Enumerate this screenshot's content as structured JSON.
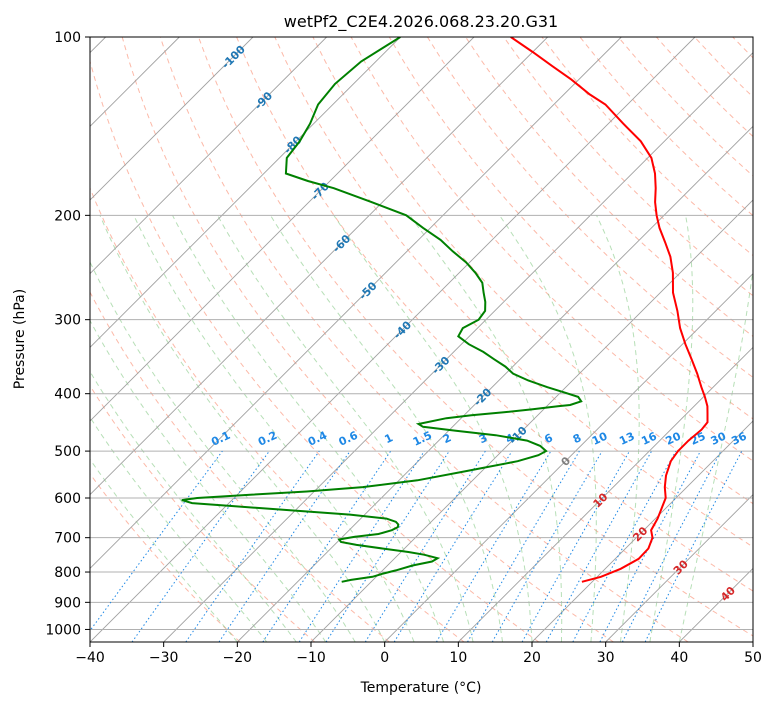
{
  "chart_data": {
    "type": "skew-t",
    "title": "wetPf2_C2E4.2026.068.23.20.G31",
    "xlabel": "Temperature (°C)",
    "ylabel": "Pressure (hPa)",
    "xlim": [
      -40,
      50
    ],
    "ylim": [
      1050,
      100
    ],
    "y_scale": "log",
    "grid": true,
    "x_ticks": [
      -40,
      -30,
      -20,
      -10,
      0,
      10,
      20,
      30,
      40,
      50
    ],
    "y_ticks": [
      100,
      200,
      300,
      400,
      500,
      600,
      700,
      800,
      900,
      1000
    ],
    "x_tick_labels": [
      "−40",
      "−30",
      "−20",
      "−10",
      "0",
      "10",
      "20",
      "30",
      "40",
      "50"
    ],
    "y_tick_labels": [
      "100",
      "200",
      "300",
      "400",
      "500",
      "600",
      "700",
      "800",
      "900",
      "1000"
    ],
    "isotherm_labels": {
      "values": [
        -100,
        -90,
        -80,
        -70,
        -60,
        -50,
        -40,
        -30,
        -20,
        -10,
        0,
        10,
        20,
        30,
        40
      ],
      "labels": [
        "-100",
        "-90",
        "-80",
        "-70",
        "-60",
        "-50",
        "-40",
        "-30",
        "-20",
        "-10",
        "0",
        "10",
        "20",
        "30",
        "40"
      ]
    },
    "mixing_ratio_labels": {
      "values": [
        0.1,
        0.2,
        0.4,
        0.6,
        1,
        1.5,
        2,
        3,
        4,
        6,
        8,
        10,
        13,
        16,
        20,
        25,
        30,
        36
      ],
      "labels": [
        "0.1",
        "0.2",
        "0.4",
        "0.6",
        "1",
        "1.5",
        "2",
        "3",
        "4",
        "6",
        "8",
        "10",
        "13",
        "16",
        "20",
        "25",
        "30",
        "36"
      ]
    },
    "colors": {
      "temperature": "#ff0000",
      "dewpoint": "#008000",
      "isotherm_cold": "#1f77b4",
      "isotherm_warm": "#d62728",
      "mixing_ratio": "#1e88e5",
      "dry_adiabat": "#fa8060",
      "moist_adiabat": "#7cc47c",
      "zero_isotherm": "#808080"
    },
    "series": [
      {
        "pressure": [
          831,
          815,
          790,
          760,
          730,
          700,
          680,
          650,
          620,
          600,
          575,
          550,
          520,
          500,
          480,
          460,
          447,
          432,
          420,
          405,
          390,
          370,
          350,
          330,
          310,
          290,
          270,
          250,
          235,
          222,
          210,
          200,
          190,
          180,
          170,
          160,
          150,
          140,
          130,
          125,
          118,
          112,
          106,
          100
        ],
        "values": [
          18.6,
          20.5,
          22.1,
          23.2,
          23.1,
          22.2,
          21.0,
          20.3,
          19.3,
          18.6,
          17.0,
          15.6,
          14.3,
          13.9,
          13.9,
          14.2,
          14.0,
          12.8,
          11.8,
          10.2,
          8.4,
          6.0,
          3.3,
          0.4,
          -2.5,
          -5.2,
          -8.3,
          -11.0,
          -13.5,
          -16.2,
          -18.9,
          -21.0,
          -23.0,
          -24.8,
          -26.9,
          -29.5,
          -33.2,
          -38.0,
          -43.0,
          -46.5,
          -51.0,
          -55.4,
          -60.0,
          -65.0
        ]
      },
      {
        "pressure": [
          831,
          825,
          815,
          805,
          795,
          780,
          768,
          758,
          748,
          740,
          730,
          720,
          712,
          705,
          698,
          690,
          680,
          672,
          665,
          658,
          650,
          640,
          630,
          620,
          612,
          605,
          600,
          592,
          585,
          575,
          560,
          540,
          520,
          508,
          500,
          490,
          480,
          470,
          462,
          455,
          450,
          440,
          435,
          430,
          425,
          420,
          418,
          412,
          405,
          398,
          390,
          380,
          370,
          360,
          350,
          340,
          330,
          320,
          310,
          300,
          290,
          280,
          270,
          260,
          250,
          240,
          230,
          220,
          210,
          200,
          190,
          180,
          175,
          170,
          160,
          150,
          140,
          130,
          120,
          110,
          100
        ],
        "values": [
          -14.0,
          -13.0,
          -10.5,
          -9.5,
          -8.2,
          -6.6,
          -4.5,
          -4.2,
          -6.5,
          -9.0,
          -13.0,
          -17.0,
          -19.5,
          -20.1,
          -18.4,
          -15.5,
          -14.2,
          -13.8,
          -14.1,
          -14.8,
          -16.5,
          -22.0,
          -30.0,
          -38.5,
          -45.0,
          -46.8,
          -45.0,
          -38.0,
          -31.0,
          -24.0,
          -17.5,
          -12.0,
          -6.5,
          -4.5,
          -4.0,
          -5.5,
          -8.0,
          -13.0,
          -19.0,
          -24.0,
          -25.0,
          -22.0,
          -19.0,
          -15.0,
          -11.5,
          -8.5,
          -7.0,
          -6.0,
          -7.0,
          -9.5,
          -12.5,
          -16.0,
          -19.0,
          -21.0,
          -23.5,
          -26.0,
          -29.0,
          -31.5,
          -32.0,
          -31.0,
          -31.3,
          -32.5,
          -34.0,
          -35.5,
          -37.8,
          -40.5,
          -43.8,
          -47.0,
          -51.0,
          -55.0,
          -61.5,
          -68.5,
          -73.0,
          -77.0,
          -79.0,
          -79.5,
          -80.5,
          -82.0,
          -82.5,
          -82.0,
          -80.0
        ]
      }
    ]
  }
}
